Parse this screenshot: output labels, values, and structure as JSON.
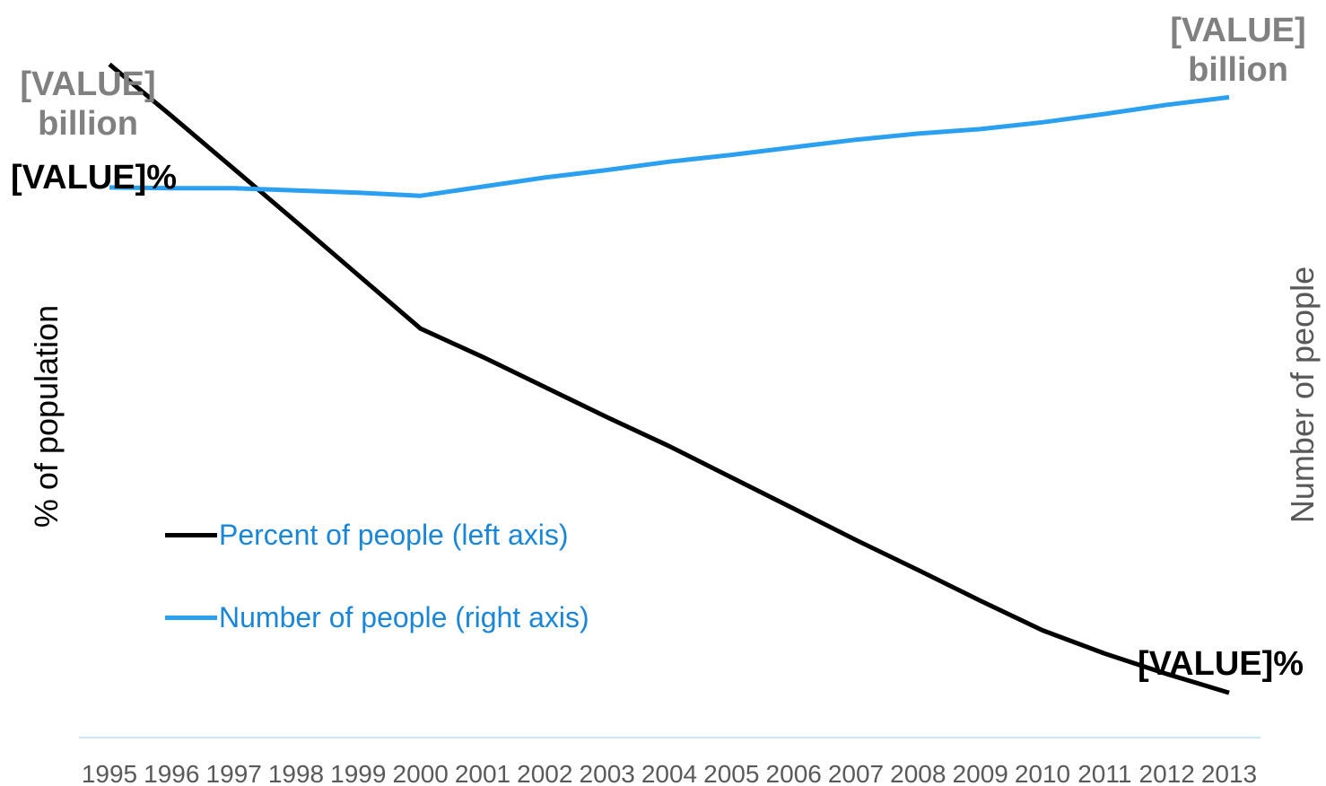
{
  "chart_data": {
    "type": "line",
    "x": [
      "1995",
      "1996",
      "1997",
      "1998",
      "1999",
      "2000",
      "2001",
      "2002",
      "2003",
      "2004",
      "2005",
      "2006",
      "2007",
      "2008",
      "2009",
      "2010",
      "2011",
      "2012",
      "2013"
    ],
    "series": [
      {
        "name": "Percent of people (left axis)",
        "axis": "left",
        "color": "#000000",
        "values": [
          100,
          90.9,
          81.6,
          72.3,
          62.9,
          53.5,
          48.5,
          43.2,
          37.9,
          32.8,
          27.3,
          21.8,
          16.3,
          11.0,
          5.6,
          0.4,
          -3.7,
          -7.3,
          -10.6
        ]
      },
      {
        "name": "Number of people (right axis)",
        "axis": "right",
        "color": "#2ca0f0",
        "values": [
          60,
          59.9,
          59.9,
          59.6,
          59.3,
          58.9,
          60.1,
          61.3,
          62.3,
          63.4,
          64.3,
          65.3,
          66.3,
          67.1,
          67.7,
          68.6,
          69.7,
          70.9,
          71.9
        ]
      }
    ],
    "ylabel_left": "% of population",
    "ylabel_right": "Number of people",
    "ylim_left": [
      -15,
      105
    ],
    "ylim_right": [
      -10,
      80
    ],
    "grid": false,
    "legend_position": "lower-left",
    "data_labels": {
      "percent_start": "[VALUE]%",
      "percent_end": "[VALUE]%",
      "number_start_value": "[VALUE]",
      "number_start_unit": "billion",
      "number_end_value": "[VALUE]",
      "number_end_unit": "billion"
    },
    "colors": {
      "axis_line": "#c9e6f8",
      "tick_text": "#595959",
      "label_grey": "#808080"
    }
  }
}
